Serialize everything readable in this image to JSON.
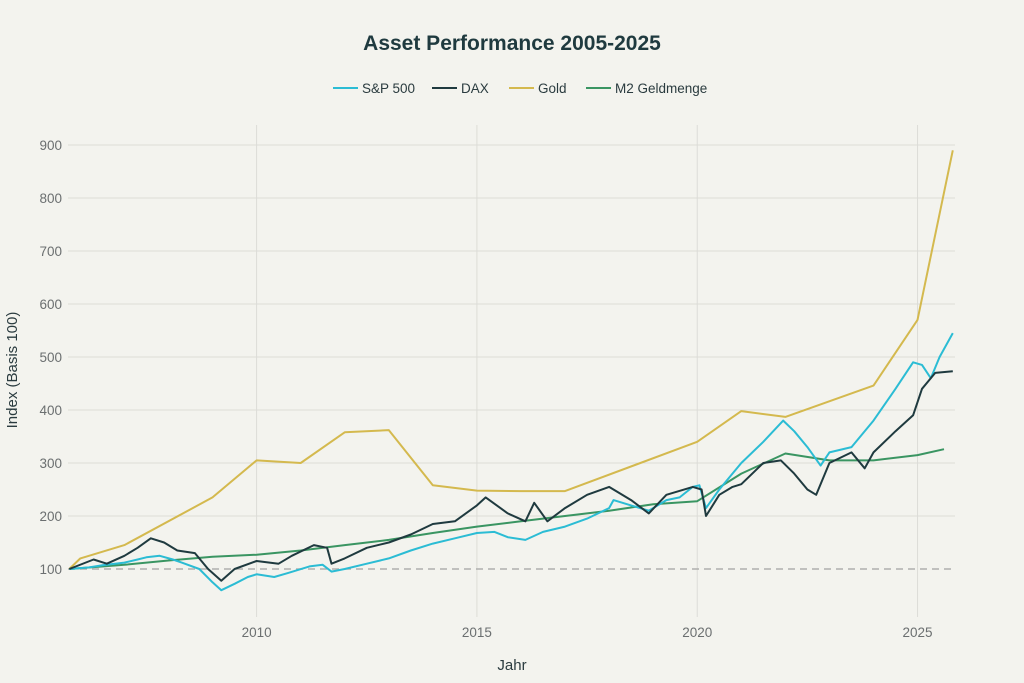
{
  "chart_data": {
    "type": "line",
    "title": "Asset Performance 2005-2025",
    "xlabel": "Jahr",
    "ylabel": "Index (Basis 100)",
    "xlim": [
      2005.72,
      2025.85
    ],
    "ylim": [
      20,
      930
    ],
    "xticks": [
      2010,
      2015,
      2020,
      2025
    ],
    "xtick_labels": [
      "2010",
      "2015",
      "2020",
      "2025"
    ],
    "yticks": [
      100,
      200,
      300,
      400,
      500,
      600,
      700,
      800,
      900
    ],
    "ytick_labels": [
      "100",
      "200",
      "300",
      "400",
      "500",
      "600",
      "700",
      "800",
      "900"
    ],
    "grid": true,
    "legend_position": "top-center",
    "reference_line": {
      "y": 100,
      "style": "dashed",
      "color": "#b0b0ad"
    },
    "series": [
      {
        "name": "S&P 500",
        "color": "#2bbcd4",
        "x": [
          2005.75,
          2006.2,
          2006.5,
          2007,
          2007.3,
          2007.5,
          2007.8,
          2008.1,
          2008.3,
          2008.7,
          2009,
          2009.2,
          2009.5,
          2009.8,
          2010,
          2010.4,
          2010.7,
          2011.2,
          2011.5,
          2011.7,
          2012,
          2012.5,
          2013,
          2013.5,
          2014,
          2014.5,
          2015,
          2015.4,
          2015.7,
          2016.1,
          2016.5,
          2017,
          2017.5,
          2018,
          2018.1,
          2018.5,
          2018.9,
          2019.3,
          2019.6,
          2019.9,
          2020.05,
          2020.2,
          2020.5,
          2021,
          2021.5,
          2021.95,
          2022.2,
          2022.5,
          2022.8,
          2023,
          2023.5,
          2024,
          2024.5,
          2024.9,
          2025.1,
          2025.3,
          2025.5,
          2025.8
        ],
        "y": [
          100,
          103,
          107,
          112,
          118,
          122,
          125,
          118,
          112,
          100,
          75,
          60,
          72,
          85,
          90,
          85,
          92,
          105,
          108,
          95,
          100,
          110,
          120,
          135,
          148,
          158,
          168,
          170,
          160,
          155,
          170,
          180,
          195,
          215,
          230,
          220,
          210,
          230,
          235,
          255,
          258,
          215,
          250,
          300,
          340,
          380,
          360,
          330,
          295,
          320,
          330,
          380,
          440,
          490,
          485,
          460,
          500,
          545
        ]
      },
      {
        "name": "DAX",
        "color": "#1f3a3f",
        "x": [
          2005.75,
          2006.3,
          2006.6,
          2007,
          2007.3,
          2007.6,
          2007.9,
          2008.2,
          2008.6,
          2008.9,
          2009.2,
          2009.5,
          2010,
          2010.5,
          2010.8,
          2011.3,
          2011.6,
          2011.7,
          2012,
          2012.5,
          2013,
          2013.5,
          2014,
          2014.5,
          2015,
          2015.2,
          2015.7,
          2016.1,
          2016.3,
          2016.6,
          2017,
          2017.5,
          2018,
          2018.5,
          2018.9,
          2019.3,
          2019.9,
          2020.1,
          2020.2,
          2020.5,
          2020.8,
          2021,
          2021.5,
          2021.9,
          2022.2,
          2022.5,
          2022.7,
          2023,
          2023.5,
          2023.8,
          2024,
          2024.5,
          2024.9,
          2025.1,
          2025.4,
          2025.8
        ],
        "y": [
          100,
          118,
          110,
          125,
          140,
          158,
          150,
          135,
          130,
          100,
          78,
          100,
          115,
          110,
          125,
          145,
          140,
          110,
          120,
          140,
          150,
          165,
          185,
          190,
          220,
          235,
          205,
          190,
          225,
          190,
          215,
          240,
          255,
          230,
          205,
          240,
          255,
          250,
          200,
          240,
          255,
          260,
          300,
          305,
          280,
          250,
          240,
          300,
          320,
          290,
          320,
          360,
          390,
          440,
          470,
          473
        ]
      },
      {
        "name": "Gold",
        "color": "#d4b94e",
        "x": [
          2005.75,
          2006,
          2007,
          2009,
          2010,
          2011,
          2012,
          2013,
          2014,
          2015,
          2016,
          2017,
          2020,
          2021,
          2022,
          2024,
          2025,
          2025.8
        ],
        "y": [
          100,
          120,
          145,
          235,
          305,
          300,
          358,
          362,
          258,
          248,
          247,
          247,
          340,
          398,
          387,
          446,
          570,
          890
        ]
      },
      {
        "name": "M2 Geldmenge",
        "color": "#3a9562",
        "x": [
          2005.75,
          2007,
          2008,
          2009,
          2010,
          2011,
          2012,
          2013,
          2014,
          2015,
          2016,
          2017,
          2018,
          2019,
          2020,
          2021,
          2022,
          2023,
          2024,
          2025,
          2025.6
        ],
        "y": [
          100,
          108,
          116,
          123,
          127,
          135,
          145,
          155,
          168,
          180,
          190,
          200,
          210,
          222,
          228,
          280,
          318,
          305,
          305,
          315,
          326
        ]
      }
    ]
  }
}
